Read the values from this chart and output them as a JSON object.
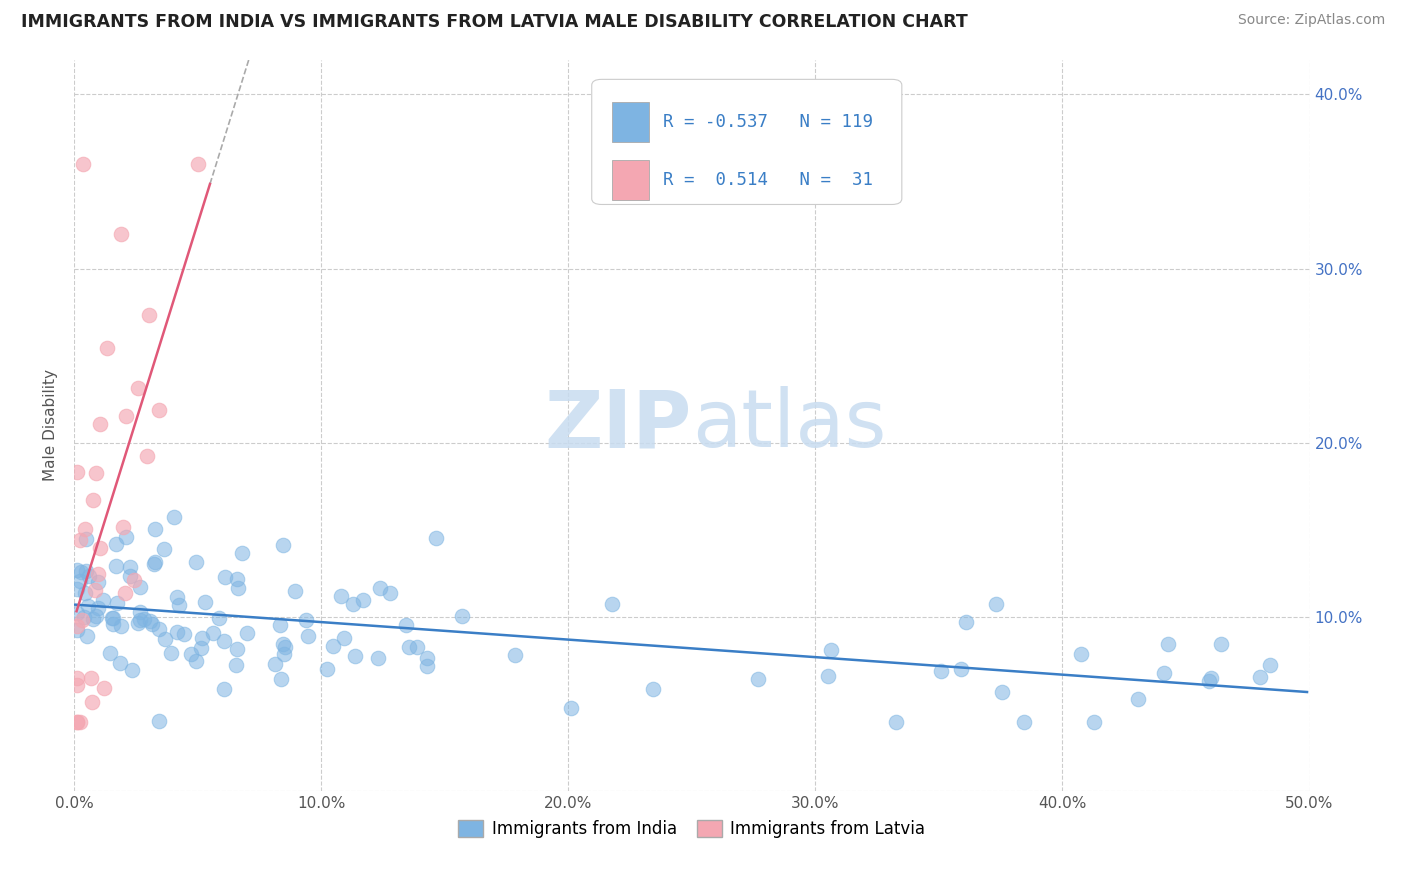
{
  "title": "IMMIGRANTS FROM INDIA VS IMMIGRANTS FROM LATVIA MALE DISABILITY CORRELATION CHART",
  "source": "Source: ZipAtlas.com",
  "ylabel": "Male Disability",
  "xlim": [
    0,
    0.5
  ],
  "ylim": [
    0,
    0.42
  ],
  "xticks": [
    0.0,
    0.1,
    0.2,
    0.3,
    0.4,
    0.5
  ],
  "yticks": [
    0.0,
    0.1,
    0.2,
    0.3,
    0.4
  ],
  "xticklabels": [
    "0.0%",
    "10.0%",
    "20.0%",
    "30.0%",
    "40.0%",
    "50.0%"
  ],
  "right_yticklabels": [
    "",
    "10.0%",
    "20.0%",
    "30.0%",
    "40.0%"
  ],
  "legend_india": "Immigrants from India",
  "legend_latvia": "Immigrants from Latvia",
  "R_india": "-0.537",
  "N_india": "119",
  "R_latvia": "0.514",
  "N_latvia": "31",
  "color_india": "#7EB4E2",
  "color_latvia": "#F4A7B2",
  "line_color_india": "#3A7EC6",
  "line_color_latvia": "#E05878",
  "watermark_zip": "ZIP",
  "watermark_atlas": "atlas"
}
